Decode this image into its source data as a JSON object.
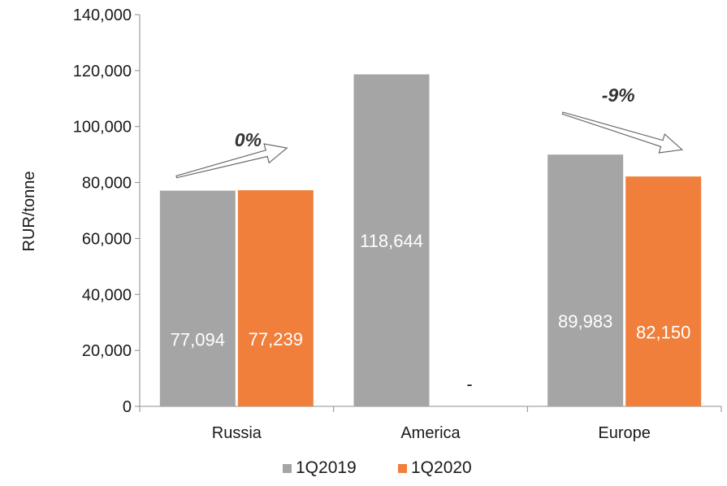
{
  "chart_data": {
    "type": "bar",
    "ylabel": "RUR/tonne",
    "xlabel": "",
    "ylim": [
      0,
      140000
    ],
    "yticks": [
      0,
      20000,
      40000,
      60000,
      80000,
      100000,
      120000,
      140000
    ],
    "ytick_labels": [
      "0",
      "20,000",
      "40,000",
      "60,000",
      "80,000",
      "100,000",
      "120,000",
      "140,000"
    ],
    "grid": false,
    "legend_position": "bottom",
    "categories": [
      "Russia",
      "America",
      "Europe"
    ],
    "series": [
      {
        "name": "1Q2019",
        "color": "#a5a5a5",
        "values": [
          77094,
          118644,
          89983
        ],
        "labels": [
          "77,094",
          "118,644",
          "89,983"
        ]
      },
      {
        "name": "1Q2020",
        "color": "#f07f3c",
        "values": [
          77239,
          null,
          82150
        ],
        "labels": [
          "77,239",
          "-",
          "82,150"
        ]
      }
    ],
    "annotations": [
      {
        "category": "Russia",
        "text": "0%",
        "direction": "up"
      },
      {
        "category": "Europe",
        "text": "-9%",
        "direction": "down"
      }
    ]
  }
}
